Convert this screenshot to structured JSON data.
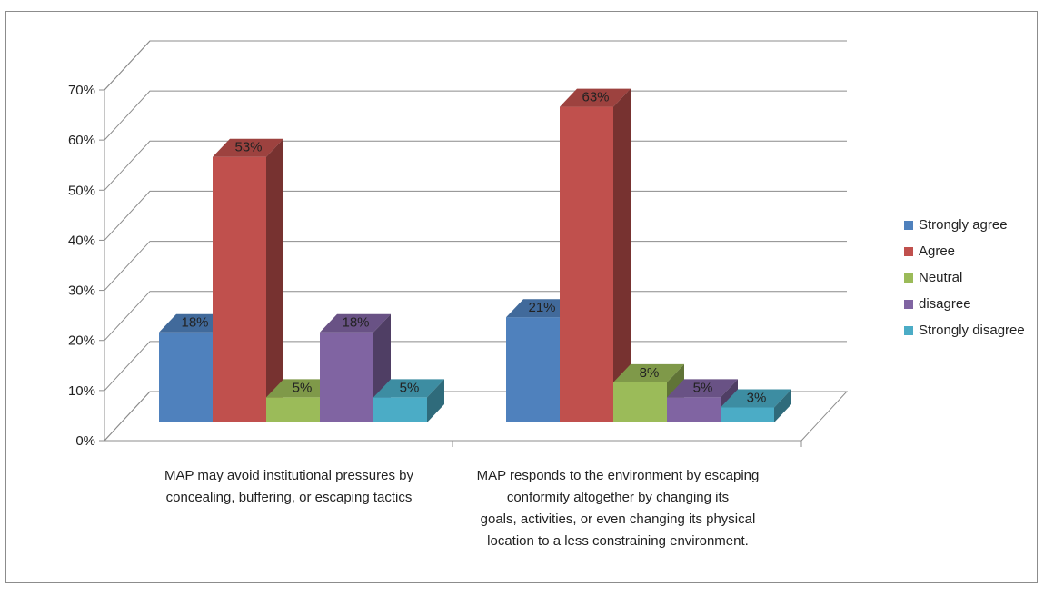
{
  "chart_data": {
    "type": "bar",
    "title": "",
    "xlabel": "",
    "ylabel": "",
    "ylim": [
      0,
      70
    ],
    "yticks": [
      "0%",
      "10%",
      "20%",
      "30%",
      "40%",
      "50%",
      "60%",
      "70%"
    ],
    "categories": [
      "MAP may avoid institutional pressures by concealing, buffering, or escaping tactics",
      "MAP responds to the environment by escaping conformity altogether by changing its goals, activities, or even changing its physical location to a less constraining environment."
    ],
    "series": [
      {
        "name": "Strongly agree",
        "color": "#4f81bd",
        "values": [
          18,
          21
        ],
        "labels": [
          "18%",
          "21%"
        ]
      },
      {
        "name": "Agree",
        "color": "#c0504d",
        "values": [
          53,
          63
        ],
        "labels": [
          "53%",
          "63%"
        ]
      },
      {
        "name": "Neutral",
        "color": "#9bbb59",
        "values": [
          5,
          8
        ],
        "labels": [
          "5%",
          "8%"
        ]
      },
      {
        "name": "disagree",
        "color": "#8064a2",
        "values": [
          18,
          5
        ],
        "labels": [
          "18%",
          "5%"
        ]
      },
      {
        "name": "Strongly disagree",
        "color": "#4bacc6",
        "values": [
          5,
          3
        ],
        "labels": [
          "5%",
          "3%"
        ]
      }
    ],
    "grid": true,
    "legend": "right"
  },
  "category_label_lines": [
    [
      "MAP may avoid institutional pressures by",
      "concealing, buffering, or escaping tactics"
    ],
    [
      "MAP responds to the environment by escaping",
      "conformity altogether by changing its",
      "goals, activities, or even changing its physical",
      "location to a less constraining environment."
    ]
  ]
}
